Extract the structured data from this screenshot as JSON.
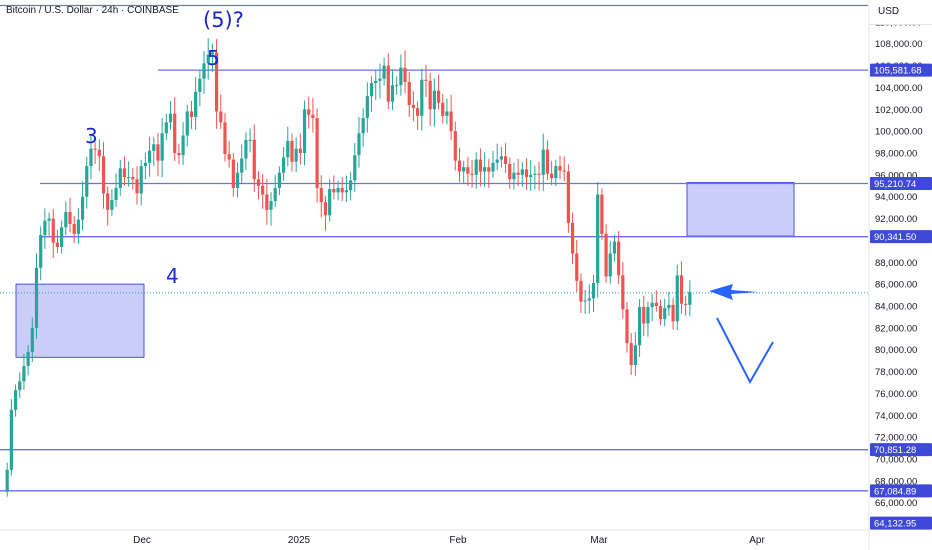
{
  "header": {
    "title": "Bitcoin / U.S. Dollar · 24h · COINBASE",
    "currency_button": "USD"
  },
  "annotations": {
    "wave_3": "3",
    "wave_4": "4",
    "wave_5": "5",
    "wave_5_alt": "(5)?"
  },
  "colors": {
    "up": "#26a69a",
    "down": "#ef5350",
    "level_line": "#6a6ff0",
    "zone_fill": "#c5c8fb",
    "zone_border": "#4a53e0",
    "arrow": "#2962ff",
    "label_bg": "#3f49d8",
    "axis_text": "#131722",
    "last_price_line": "#26a69a"
  },
  "chart_data": {
    "type": "candlestick",
    "y_axis": {
      "min": 63500,
      "max": 112000,
      "currency": "USD",
      "tick_labels": [
        "66,000.00",
        "68,000.00",
        "70,000.00",
        "72,000.00",
        "74,000.00",
        "76,000.00",
        "78,000.00",
        "80,000.00",
        "82,000.00",
        "84,000.00",
        "86,000.00",
        "88,000.00",
        "92,000.00",
        "94,000.00",
        "96,000.00",
        "98,000.00",
        "100,000.00",
        "102,000.00",
        "104,000.00",
        "106,000.00",
        "108,000.00",
        "110,000.00"
      ]
    },
    "x_axis": {
      "tick_labels": [
        "Dec",
        "2025",
        "Feb",
        "Mar",
        "Apr"
      ]
    },
    "levels": [
      {
        "label": "105,581.68",
        "value": 105581.68
      },
      {
        "label": "95,210.74",
        "value": 95210.74
      },
      {
        "label": "90,341.50",
        "value": 90341.5
      },
      {
        "label": "70,851.28",
        "value": 70851.28
      },
      {
        "label": "67,084.89",
        "value": 67084.89
      },
      {
        "label": "64,132.95",
        "value": 64132.95
      }
    ],
    "top_line_value": 111500,
    "last_price": 85200,
    "zones": [
      {
        "low": 79300,
        "high": 86000
      },
      {
        "low": 90400,
        "high": 95300
      }
    ],
    "closes": [
      67000,
      69000,
      74500,
      76300,
      77100,
      78500,
      79800,
      82000,
      87500,
      90500,
      91800,
      92000,
      89800,
      89400,
      91200,
      92600,
      91500,
      90600,
      91900,
      94000,
      96800,
      98400,
      98300,
      97700,
      94300,
      92800,
      93700,
      94800,
      96600,
      95800,
      95800,
      95600,
      94300,
      96800,
      97100,
      98200,
      98800,
      97300,
      99800,
      100800,
      101600,
      98000,
      97800,
      99600,
      101800,
      101300,
      103600,
      104800,
      106200,
      107000,
      107200,
      101800,
      100800,
      97900,
      97400,
      94800,
      96200,
      97500,
      99200,
      99200,
      95600,
      95000,
      94200,
      92800,
      93600,
      94800,
      96200,
      97600,
      99100,
      97200,
      98400,
      98000,
      102000,
      101500,
      101200,
      94800,
      93500,
      92300,
      94700,
      94400,
      94800,
      94400,
      94600,
      95500,
      97800,
      99800,
      101200,
      103200,
      104400,
      104600,
      104800,
      106000,
      102700,
      104200,
      104200,
      105800,
      104500,
      102400,
      102100,
      101400,
      104700,
      104600,
      102000,
      103700,
      102600,
      101400,
      101800,
      100000,
      97300,
      96300,
      96700,
      96100,
      96000,
      97400,
      96300,
      96700,
      96300,
      97100,
      97400,
      97700,
      97000,
      95600,
      96200,
      96000,
      96500,
      95800,
      96000,
      96100,
      96000,
      98300,
      96100,
      95700,
      96800,
      96400,
      96300,
      91600,
      88800,
      86300,
      84400,
      84500,
      84700,
      86100,
      94200,
      90600,
      86700,
      88800,
      89900,
      86800,
      83700,
      80600,
      78600,
      80400,
      83900,
      82400,
      83900,
      84300,
      84000,
      82800,
      83800,
      84100,
      82600,
      86800,
      84200,
      84100,
      85300
    ]
  }
}
